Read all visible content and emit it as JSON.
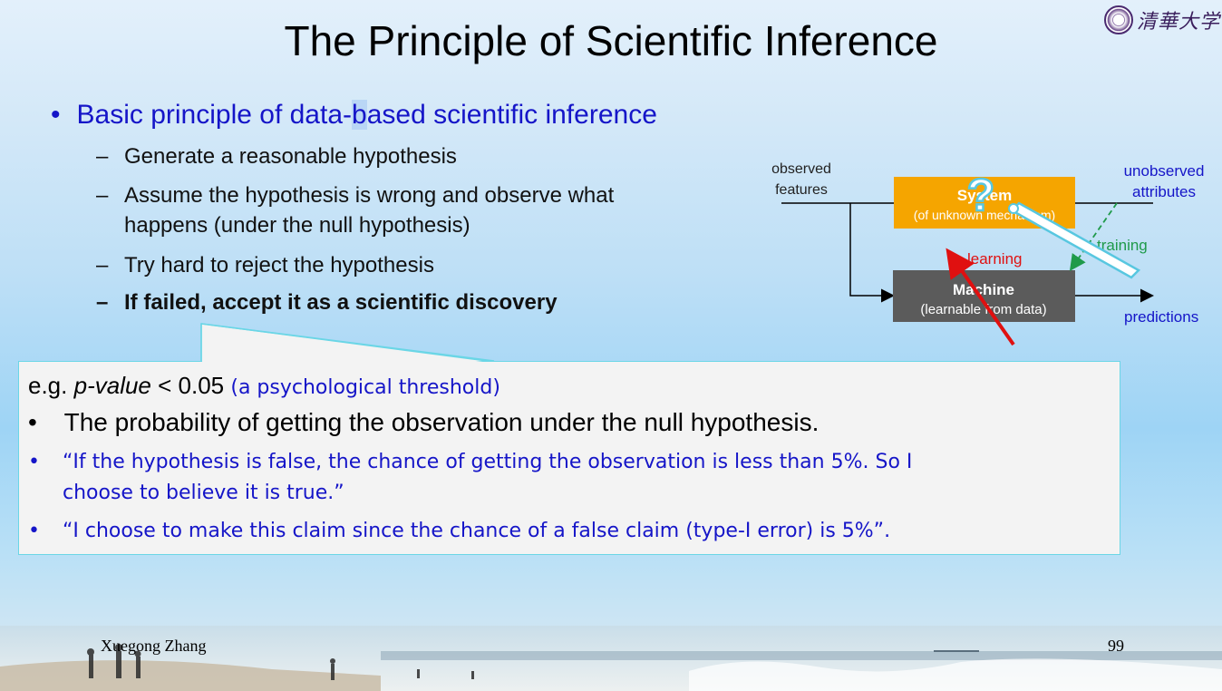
{
  "slide": {
    "title": "The Principle of Scientific Inference",
    "logo_text": "清華大学",
    "main_bullet": {
      "text_before": "Basic principle of data-",
      "text_highlight": "b",
      "text_after": "ased scientific inference"
    },
    "sub_bullets": [
      "Generate a reasonable hypothesis",
      "Assume the hypothesis is wrong and observe what",
      "happens (under the null hypothesis)",
      "Try hard to reject the hypothesis",
      "If failed, accept it as a scientific discovery"
    ],
    "diagram": {
      "observed": "observed",
      "features": "features",
      "unobserved": "unobserved",
      "attributes": "attributes",
      "system": "System",
      "system_sub": "(of unknown mechanism)",
      "machine": "Machine",
      "machine_sub": "(learnable from data)",
      "learning": "learning",
      "training": "training",
      "predictions": "predictions",
      "question_mark": "?"
    },
    "callout": {
      "eg": "e.g.",
      "pvalue": "p-value",
      "threshold": "< 0.05",
      "note": "(a psychological threshold)",
      "bullet1": "The probability of getting the observation under the null hypothesis.",
      "bullet2_line1": "“If the hypothesis is false, the chance of getting the observation is less than 5%.  So I",
      "bullet2_line2": "choose to believe it is true.”",
      "bullet3": "“I choose to make this claim since the chance of a false claim (type-I error) is 5%”."
    },
    "footer": {
      "author": "Xuegong Zhang",
      "page": "99"
    },
    "colors": {
      "blue_text": "#1515c8",
      "system_box": "#f5a500",
      "machine_box": "#5b5b5b",
      "learning": "#e01010",
      "training": "#1f9a4a",
      "callout_border": "#6ad6e6"
    }
  }
}
